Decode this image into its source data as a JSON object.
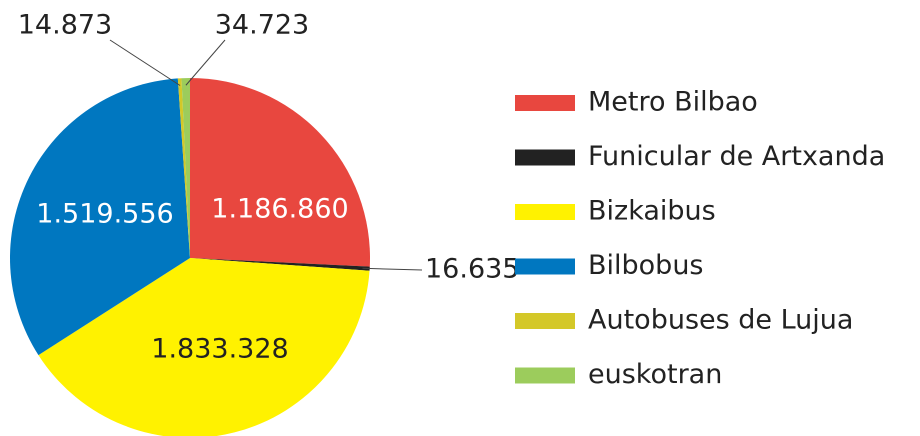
{
  "chart_data": {
    "type": "pie",
    "categories": [
      "Metro Bilbao",
      "Funicular de Artxanda",
      "Bizkaibus",
      "Bilbobus",
      "Autobuses de Lujua",
      "euskotran"
    ],
    "values": [
      1186860,
      16635,
      1833328,
      1519556,
      14873,
      34723
    ],
    "value_labels": [
      "1.186.860",
      "16.635",
      "1.833.328",
      "1.519.556",
      "14.873",
      "34.723"
    ],
    "colors": [
      "#e8473f",
      "#222222",
      "#fff200",
      "#0077c0",
      "#d4c828",
      "#9ccc5c"
    ],
    "legend": "right"
  }
}
